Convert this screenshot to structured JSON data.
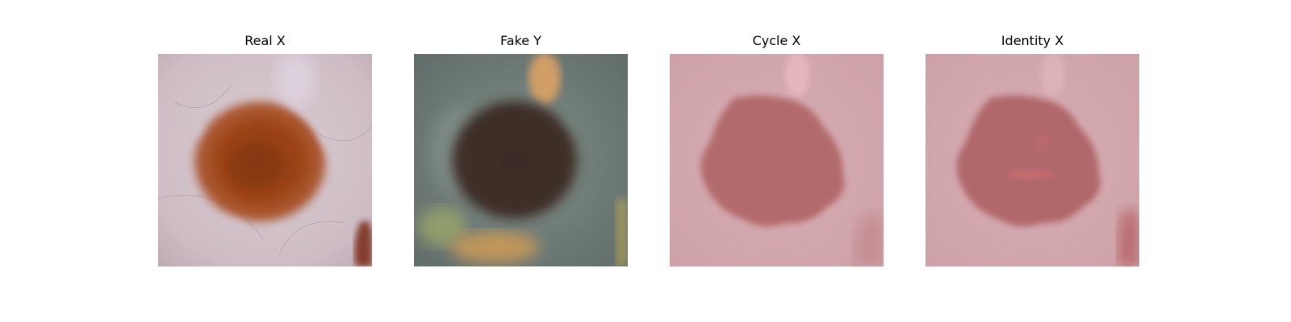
{
  "figure": {
    "panels": [
      {
        "title": "Real X"
      },
      {
        "title": "Fake Y"
      },
      {
        "title": "Cycle X"
      },
      {
        "title": "Identity X"
      }
    ]
  }
}
